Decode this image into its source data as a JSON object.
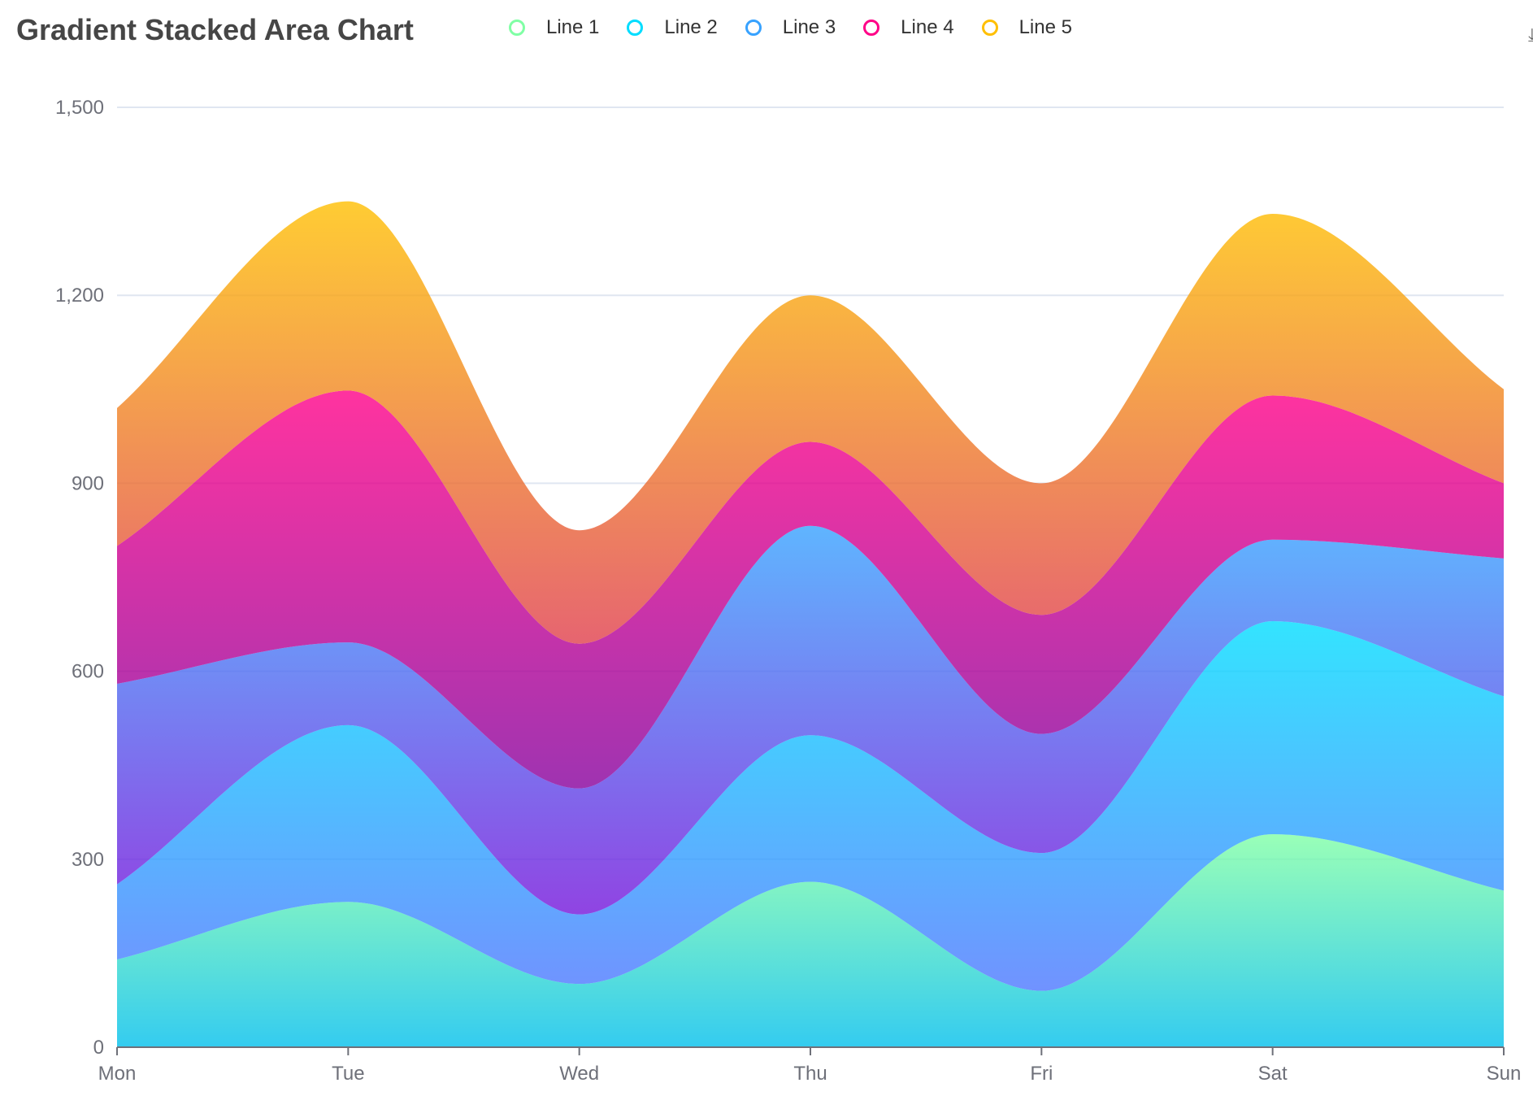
{
  "chart_data": {
    "type": "area",
    "stacked": true,
    "smooth": true,
    "title": "Gradient Stacked Area Chart",
    "categories": [
      "Mon",
      "Tue",
      "Wed",
      "Thu",
      "Fri",
      "Sat",
      "Sun"
    ],
    "series": [
      {
        "name": "Line 1",
        "values": [
          140,
          232,
          101,
          264,
          90,
          340,
          250
        ],
        "color": "#80FFA5",
        "gradient": [
          "#80FFA5",
          "#01BFEC"
        ]
      },
      {
        "name": "Line 2",
        "values": [
          120,
          282,
          111,
          234,
          220,
          340,
          310
        ],
        "color": "#00DDFF",
        "gradient": [
          "#00DDFF",
          "#4D77FF"
        ]
      },
      {
        "name": "Line 3",
        "values": [
          320,
          132,
          201,
          334,
          190,
          130,
          220
        ],
        "color": "#37A2FF",
        "gradient": [
          "#37A2FF",
          "#7415DB"
        ]
      },
      {
        "name": "Line 4",
        "values": [
          220,
          402,
          231,
          134,
          190,
          230,
          120
        ],
        "color": "#FF0087",
        "gradient": [
          "#FF0087",
          "#87009D"
        ]
      },
      {
        "name": "Line 5",
        "values": [
          220,
          302,
          181,
          234,
          210,
          290,
          150
        ],
        "color": "#FFBF00",
        "gradient": [
          "#FFBF00",
          "#E03E4C"
        ]
      }
    ],
    "ylim": [
      0,
      1500
    ],
    "yticks": [
      0,
      300,
      600,
      900,
      1200,
      1500
    ],
    "ytick_labels": [
      "0",
      "300",
      "600",
      "900",
      "1,200",
      "1,500"
    ],
    "grid": true,
    "legend_position": "top-center"
  }
}
